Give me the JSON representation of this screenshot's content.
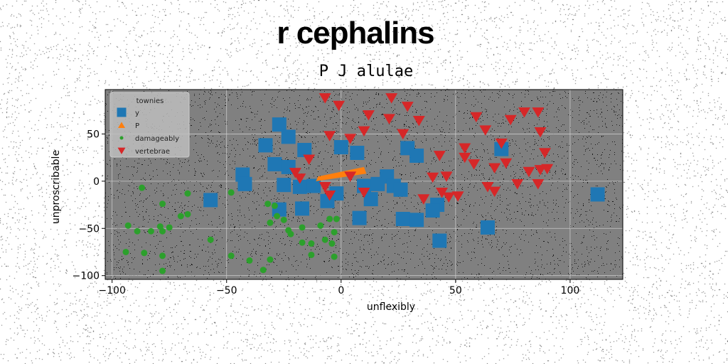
{
  "chart_data": {
    "type": "scatter",
    "title": "r cephalins",
    "subtitle": "P J alulae",
    "xlabel": "unflexibly",
    "ylabel": "unproscribable",
    "xlim": [
      -103,
      123
    ],
    "ylim": [
      -104,
      97
    ],
    "xticks": [
      -100,
      -50,
      0,
      50,
      100
    ],
    "yticks": [
      -100,
      -50,
      0,
      50
    ],
    "xtick_labels": [
      "−100",
      "−50",
      "0",
      "50",
      "100"
    ],
    "ytick_labels": [
      "−100",
      "−50",
      "0",
      "50"
    ],
    "grid": true,
    "legend": {
      "title": "townies",
      "placement": "top-left"
    },
    "series": [
      {
        "name": "y",
        "marker": "square",
        "color": "#1f77b4",
        "points": [
          [
            -27,
            60
          ],
          [
            -23,
            47
          ],
          [
            -33,
            38
          ],
          [
            -16,
            33
          ],
          [
            -29,
            18
          ],
          [
            -23,
            15
          ],
          [
            -43,
            7
          ],
          [
            -42,
            -3
          ],
          [
            -25,
            -4
          ],
          [
            -18,
            -6
          ],
          [
            -12,
            -5
          ],
          [
            -57,
            -20
          ],
          [
            -27,
            -30
          ],
          [
            -17,
            -29
          ],
          [
            -6,
            -21
          ],
          [
            0,
            36
          ],
          [
            7,
            30
          ],
          [
            -2,
            -13
          ],
          [
            10,
            -5
          ],
          [
            13,
            -19
          ],
          [
            16,
            -3
          ],
          [
            20,
            5
          ],
          [
            23,
            -5
          ],
          [
            26,
            -9
          ],
          [
            29,
            35
          ],
          [
            33,
            27
          ],
          [
            27,
            -40
          ],
          [
            33,
            -41
          ],
          [
            42,
            -25
          ],
          [
            40,
            -31
          ],
          [
            43,
            -63
          ],
          [
            8,
            -39
          ],
          [
            64,
            -49
          ],
          [
            70,
            34
          ],
          [
            112,
            -14
          ]
        ]
      },
      {
        "name": "P",
        "marker": "quad",
        "color": "#ff7f0e",
        "points": [
          [
            -11,
            0
          ],
          [
            -10,
            5
          ],
          [
            10,
            15
          ],
          [
            11,
            8
          ]
        ]
      },
      {
        "name": "damageably",
        "marker": "circle",
        "color": "#2ca02c",
        "points": [
          [
            -87,
            -7
          ],
          [
            -78,
            -24
          ],
          [
            -67,
            -13
          ],
          [
            -67,
            -35
          ],
          [
            -70,
            -37
          ],
          [
            -93,
            -47
          ],
          [
            -89,
            -53
          ],
          [
            -83,
            -53
          ],
          [
            -78,
            -53
          ],
          [
            -75,
            -49
          ],
          [
            -79,
            -48
          ],
          [
            -94,
            -75
          ],
          [
            -86,
            -76
          ],
          [
            -78,
            -79
          ],
          [
            -78,
            -95
          ],
          [
            -57,
            -62
          ],
          [
            -48,
            -12
          ],
          [
            -48,
            -79
          ],
          [
            -40,
            -84
          ],
          [
            -34,
            -94
          ],
          [
            -31,
            -83
          ],
          [
            -32,
            -24
          ],
          [
            -29,
            -26
          ],
          [
            -28,
            -37
          ],
          [
            -31,
            -44
          ],
          [
            -25,
            -41
          ],
          [
            -23,
            -52
          ],
          [
            -22,
            -56
          ],
          [
            -17,
            -49
          ],
          [
            -17,
            -65
          ],
          [
            -13,
            -66
          ],
          [
            -13,
            -78
          ],
          [
            -9,
            -47
          ],
          [
            -5,
            -40
          ],
          [
            -2,
            -40
          ],
          [
            -3,
            -54
          ],
          [
            -7,
            -62
          ],
          [
            -4,
            -66
          ],
          [
            -3,
            -80
          ]
        ]
      },
      {
        "name": "vertebrae",
        "marker": "triangle-down",
        "color": "#d62728",
        "points": [
          [
            -7,
            88
          ],
          [
            -1,
            80
          ],
          [
            12,
            70
          ],
          [
            22,
            88
          ],
          [
            29,
            79
          ],
          [
            34,
            64
          ],
          [
            21,
            66
          ],
          [
            10,
            53
          ],
          [
            4,
            45
          ],
          [
            -5,
            48
          ],
          [
            27,
            50
          ],
          [
            -14,
            23
          ],
          [
            -20,
            9
          ],
          [
            -18,
            3
          ],
          [
            -7,
            -6
          ],
          [
            -5,
            -15
          ],
          [
            4,
            5
          ],
          [
            10,
            -12
          ],
          [
            36,
            -19
          ],
          [
            40,
            4
          ],
          [
            43,
            27
          ],
          [
            46,
            5
          ],
          [
            44,
            -12
          ],
          [
            47,
            -17
          ],
          [
            51,
            -16
          ],
          [
            54,
            35
          ],
          [
            54,
            25
          ],
          [
            58,
            18
          ],
          [
            59,
            68
          ],
          [
            63,
            54
          ],
          [
            64,
            -6
          ],
          [
            67,
            -11
          ],
          [
            67,
            14
          ],
          [
            70,
            40
          ],
          [
            72,
            19
          ],
          [
            74,
            65
          ],
          [
            77,
            -3
          ],
          [
            80,
            73
          ],
          [
            82,
            10
          ],
          [
            87,
            12
          ],
          [
            86,
            73
          ],
          [
            87,
            52
          ],
          [
            89,
            30
          ],
          [
            90,
            13
          ],
          [
            86,
            -3
          ]
        ]
      }
    ]
  }
}
